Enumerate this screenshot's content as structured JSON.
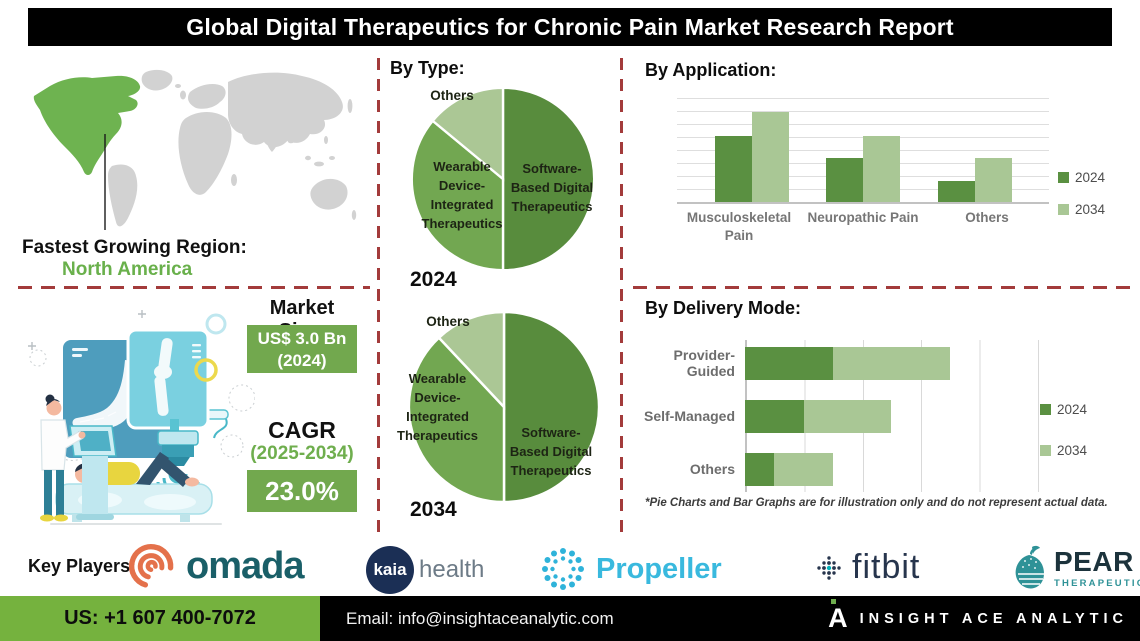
{
  "header": {
    "title": "Global Digital Therapeutics for Chronic Pain Market Research Report"
  },
  "map_section": {
    "region_label": "Fastest Growing Region:",
    "region_value": "North America"
  },
  "market": {
    "size_label": "Market Size:",
    "size_value": "US$ 3.0 Bn",
    "size_year": "(2024)",
    "cagr_label": "CAGR",
    "cagr_period": "(2025-2034)",
    "cagr_value": "23.0%"
  },
  "sections": {
    "by_type": "By Type:",
    "by_application": "By Application:",
    "by_delivery": "By Delivery Mode:"
  },
  "footnote": "*Pie Charts and Bar Graphs are for illustration only and do not represent actual data.",
  "key_players": {
    "label": "Key Players:",
    "omada": "omada",
    "kaia": "kaia",
    "kaia_health": "health",
    "propeller": "Propeller",
    "fitbit": "fitbit",
    "pear": "PEAR",
    "pear_sub": "THERAPEUTICS"
  },
  "footer": {
    "phone": "US: +1 607 400-7072",
    "email": "Email: info@insightaceanalytic.com",
    "brand": "INSIGHT ACE ANALYTIC"
  },
  "colors": {
    "accent_green": "#6fae4e",
    "box_green": "#72a84e",
    "map_green": "#6eb350",
    "map_gray": "#d2d2d2",
    "dash_red": "#a33b3b",
    "footer_green": "#75b23e",
    "bar_2024": "#5a9041",
    "bar_2034": "#a9c795"
  },
  "chart_data": [
    {
      "id": "pie2024",
      "type": "pie",
      "title": "2024",
      "labels": [
        "Software-Based Digital Therapeutics",
        "Wearable Device-Integrated Therapeutics",
        "Others"
      ],
      "values": [
        50,
        36,
        14
      ],
      "colors": [
        "#588c3d",
        "#72a751",
        "#abc795"
      ],
      "note": "illustrative only"
    },
    {
      "id": "pie2034",
      "type": "pie",
      "title": "2034",
      "labels": [
        "Software-Based Digital Therapeutics",
        "Wearable Device-Integrated Therapeutics",
        "Others"
      ],
      "values": [
        50,
        38,
        12
      ],
      "colors": [
        "#588c3d",
        "#72a751",
        "#abc795"
      ],
      "note": "illustrative only"
    },
    {
      "id": "application",
      "type": "bar",
      "title": "By Application:",
      "categories": [
        "Musculoskeletal Pain",
        "Neuropathic Pain",
        "Others"
      ],
      "series": [
        {
          "name": "2024",
          "color": "#5a9041",
          "values": [
            6.3,
            4.2,
            2.0
          ]
        },
        {
          "name": "2034",
          "color": "#a9c795",
          "values": [
            8.6,
            6.3,
            4.2
          ]
        }
      ],
      "ylim": [
        0,
        10
      ],
      "grid": true,
      "legend": true,
      "legend_position": "right",
      "note": "illustrative only, no value axis shown"
    },
    {
      "id": "delivery",
      "type": "stacked-bar-horizontal",
      "title": "By Delivery Mode:",
      "categories": [
        "Provider-Guided",
        "Self-Managed",
        "Others"
      ],
      "series": [
        {
          "name": "2024",
          "color": "#5a9041",
          "values": [
            1.5,
            1.0,
            0.5
          ]
        },
        {
          "name": "2034",
          "color": "#a9c795",
          "values": [
            2.0,
            1.5,
            1.0
          ]
        }
      ],
      "xlim": [
        0,
        5
      ],
      "grid": true,
      "legend": true,
      "legend_position": "right",
      "note": "illustrative only, no value axis shown"
    }
  ]
}
